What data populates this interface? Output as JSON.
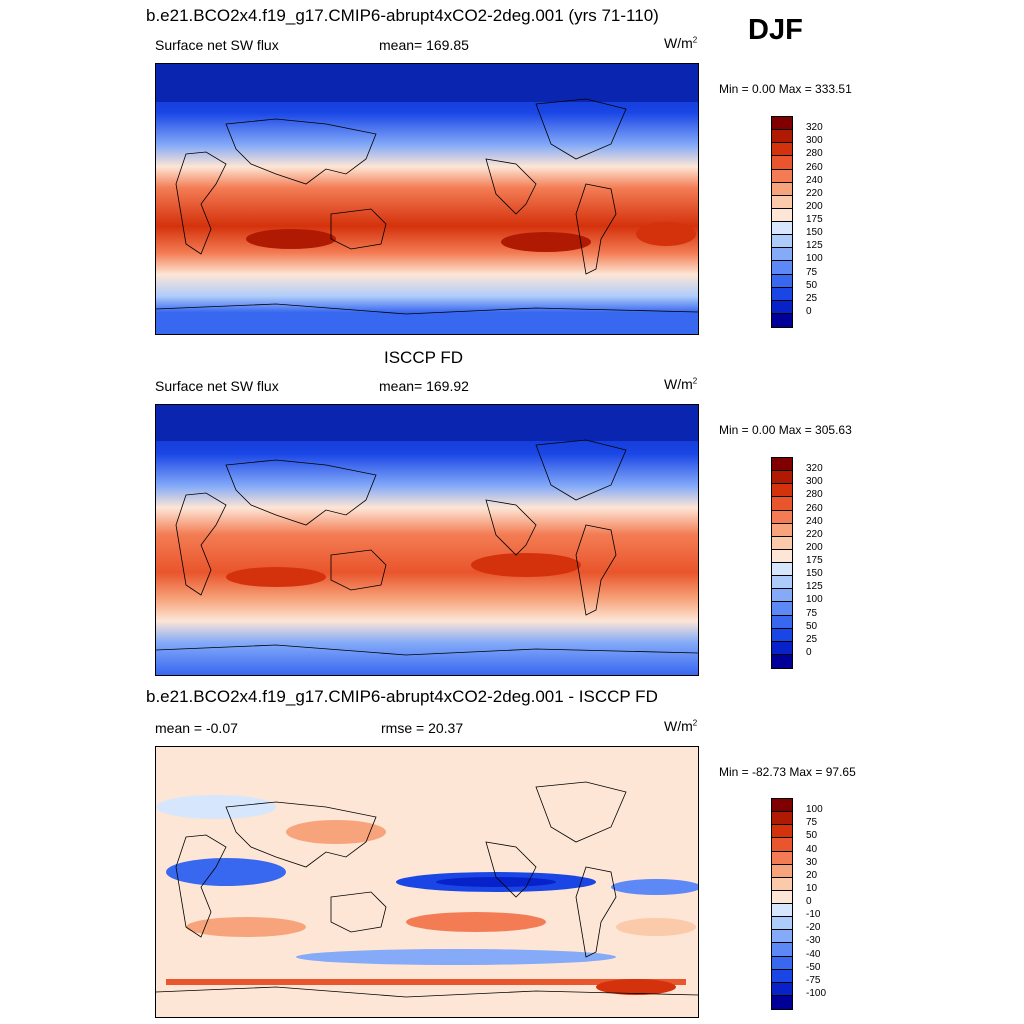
{
  "season": "DJF",
  "palettes": {
    "flux": [
      "#000099",
      "#0722c8",
      "#1a46e6",
      "#3868f0",
      "#5c89f5",
      "#84aaf8",
      "#aeccfa",
      "#d6e6fc",
      "#fde6d6",
      "#fbcaaa",
      "#f7a47c",
      "#f37c54",
      "#e9552c",
      "#d4320c",
      "#b01a02",
      "#800000"
    ],
    "diff": [
      "#000099",
      "#0722c8",
      "#1a46e6",
      "#3868f0",
      "#5c89f5",
      "#84aaf8",
      "#aeccfa",
      "#d6e6fc",
      "#fde6d6",
      "#fbcaaa",
      "#f7a47c",
      "#f37c54",
      "#e9552c",
      "#d4320c",
      "#b01a02",
      "#800000"
    ]
  },
  "panels": [
    {
      "id": "model",
      "title": "b.e21.BCO2x4.f19_g17.CMIP6-abrupt4xCO2-2deg.001 (yrs 71-110)",
      "left_label": "Surface net SW flux",
      "center_label": "mean= 169.85",
      "units": "W/m",
      "units_sup": "2",
      "minmax": "Min =   0.00 Max = 333.51",
      "colorbar_labels": [
        "320",
        "300",
        "280",
        "260",
        "240",
        "220",
        "200",
        "175",
        "150",
        "125",
        "100",
        "75",
        "50",
        "25",
        "0"
      ]
    },
    {
      "id": "obs",
      "title": "ISCCP FD",
      "left_label": "Surface net SW flux",
      "center_label": "mean= 169.92",
      "units": "W/m",
      "units_sup": "2",
      "minmax": "Min =   0.00 Max = 305.63",
      "colorbar_labels": [
        "320",
        "300",
        "280",
        "260",
        "240",
        "220",
        "200",
        "175",
        "150",
        "125",
        "100",
        "75",
        "50",
        "25",
        "0"
      ]
    },
    {
      "id": "diff",
      "title": "b.e21.BCO2x4.f19_g17.CMIP6-abrupt4xCO2-2deg.001 - ISCCP FD",
      "left_label": "mean =  -0.07",
      "center_label": "rmse =  20.37",
      "units": "W/m",
      "units_sup": "2",
      "minmax": "Min = -82.73 Max =  97.65",
      "colorbar_labels": [
        "100",
        "75",
        "50",
        "40",
        "30",
        "20",
        "10",
        "0",
        "-10",
        "-20",
        "-30",
        "-40",
        "-50",
        "-75",
        "-100"
      ]
    }
  ]
}
